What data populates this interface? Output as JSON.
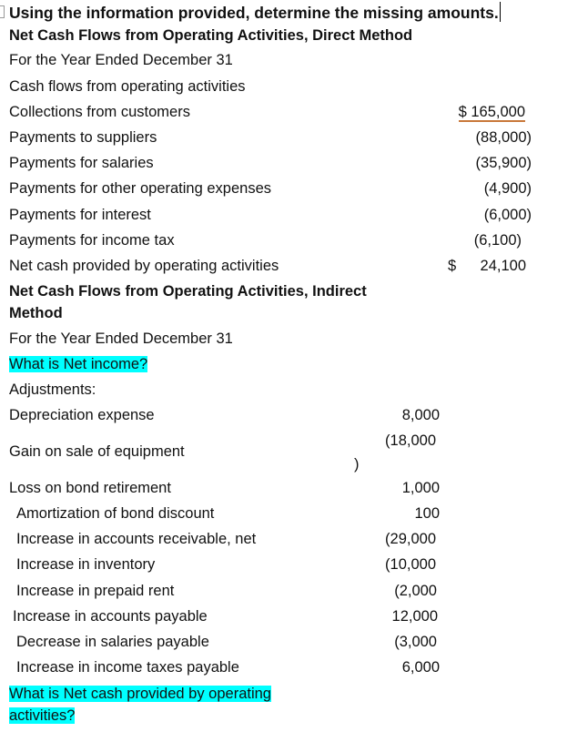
{
  "title": "Using the information provided, determine the missing amounts.",
  "direct": {
    "heading": "Net Cash Flows from Operating Activities, Direct Method",
    "period": "For the Year Ended December 31",
    "section": "Cash flows from operating activities",
    "rows": [
      {
        "label": "Collections from customers",
        "amount": "$ 165,000"
      },
      {
        "label": "Payments to suppliers",
        "amount": "(88,000)"
      },
      {
        "label": "Payments for salaries",
        "amount": "(35,900)"
      },
      {
        "label": "Payments for other operating expenses",
        "amount": "(4,900)"
      },
      {
        "label": "Payments for interest",
        "amount": "(6,000)"
      },
      {
        "label": "Payments for income tax",
        "amount": "(6,100)"
      }
    ],
    "total_label": "Net cash provided by operating activities",
    "total_currency": "$",
    "total_amount": "24,100"
  },
  "indirect": {
    "heading_line1": "Net Cash Flows from Operating Activities, Indirect",
    "heading_line2": "Method",
    "period": "For the Year Ended December 31",
    "question_net_income": "What is Net income?",
    "adjustments_label": "Adjustments:",
    "rows": [
      {
        "label": "Depreciation expense",
        "amount": "8,000"
      },
      {
        "label": "Gain on sale of equipment",
        "amount": "(18,000",
        "amount_cont": ")"
      },
      {
        "label": "Loss on bond retirement",
        "amount": "1,000"
      },
      {
        "label": "Amortization of bond discount",
        "amount": "100"
      },
      {
        "label": "Increase in accounts receivable, net",
        "amount": "(29,000"
      },
      {
        "label": "Increase in inventory",
        "amount": "(10,000"
      },
      {
        "label": "Increase in prepaid rent",
        "amount": "(2,000"
      },
      {
        "label": "Increase in accounts payable",
        "amount": "12,000"
      },
      {
        "label": "Decrease in salaries payable",
        "amount": "(3,000"
      },
      {
        "label": "Increase in income taxes payable",
        "amount": "6,000"
      }
    ],
    "question_net_cash_line1": "What is Net cash provided by operating",
    "question_net_cash_line2": "activities?"
  },
  "colors": {
    "highlight": "#00ffff",
    "underline": "#c9783a"
  }
}
